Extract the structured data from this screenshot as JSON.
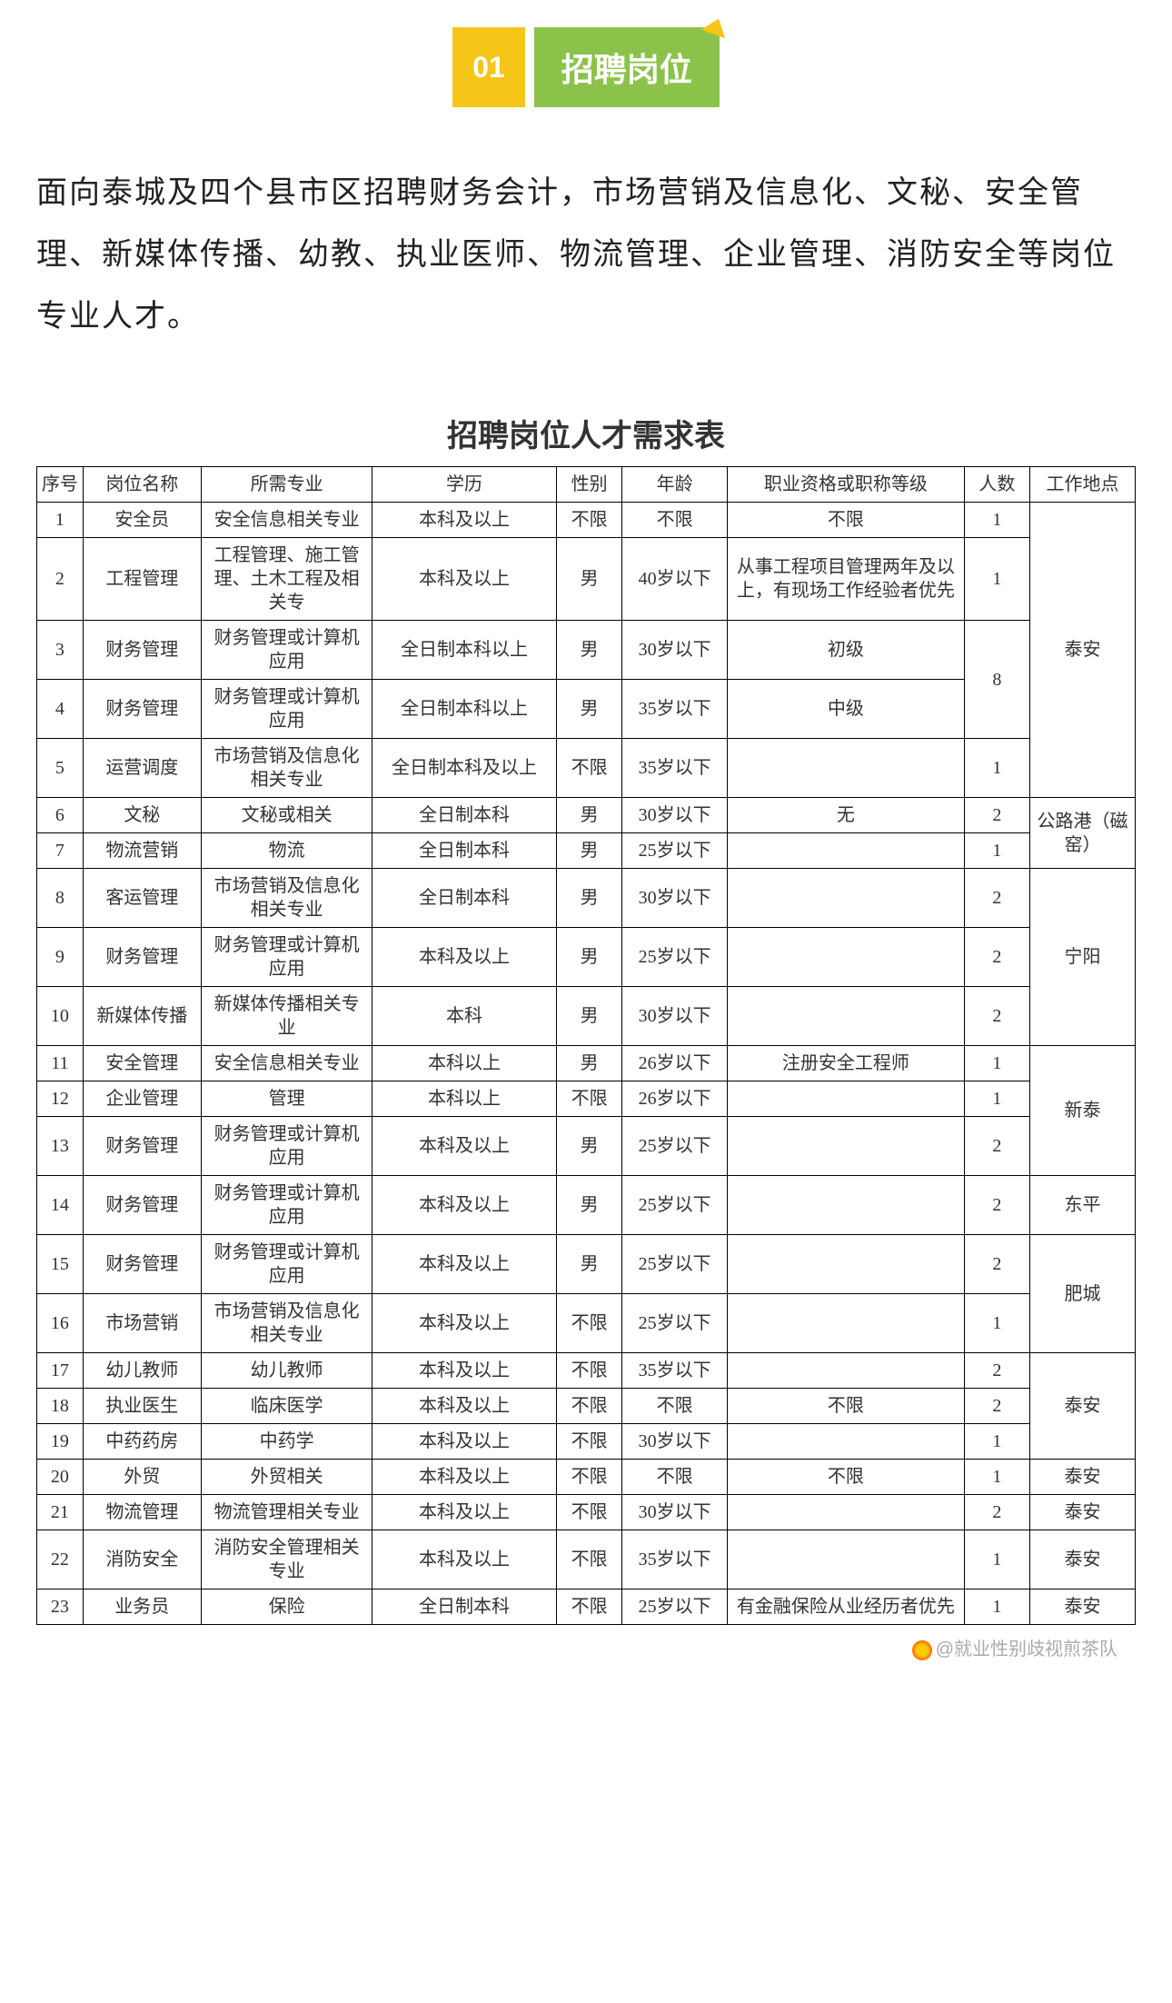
{
  "header": {
    "number": "01",
    "title": "招聘岗位"
  },
  "intro": "面向泰城及四个县市区招聘财务会计，市场营销及信息化、文秘、安全管理、新媒体传播、幼教、执业医师、物流管理、企业管理、消防安全等岗位专业人才。",
  "table": {
    "title": "招聘岗位人才需求表",
    "columns": [
      "序号",
      "岗位名称",
      "所需专业",
      "学历",
      "性别",
      "年龄",
      "职业资格或职称等级",
      "人数",
      "工作地点"
    ],
    "rows": [
      {
        "seq": "1",
        "name": "安全员",
        "major": "安全信息相关专业",
        "edu": "本科及以上",
        "gender": "不限",
        "age": "不限",
        "qual": "不限",
        "count": "1",
        "loc": null
      },
      {
        "seq": "2",
        "name": "工程管理",
        "major": "工程管理、施工管理、土木工程及相关专",
        "edu": "本科及以上",
        "gender": "男",
        "age": "40岁以下",
        "qual": "从事工程项目管理两年及以上，有现场工作经验者优先",
        "count": "1",
        "loc": null
      },
      {
        "seq": "3",
        "name": "财务管理",
        "major": "财务管理或计算机应用",
        "edu": "全日制本科以上",
        "gender": "男",
        "age": "30岁以下",
        "qual": "初级",
        "count": null,
        "loc": null
      },
      {
        "seq": "4",
        "name": "财务管理",
        "major": "财务管理或计算机应用",
        "edu": "全日制本科以上",
        "gender": "男",
        "age": "35岁以下",
        "qual": "中级",
        "count": null,
        "loc": null
      },
      {
        "seq": "5",
        "name": "运营调度",
        "major": "市场营销及信息化相关专业",
        "edu": "全日制本科及以上",
        "gender": "不限",
        "age": "35岁以下",
        "qual": "",
        "count": "1",
        "loc": null
      },
      {
        "seq": "6",
        "name": "文秘",
        "major": "文秘或相关",
        "edu": "全日制本科",
        "gender": "男",
        "age": "30岁以下",
        "qual": "无",
        "count": "2",
        "loc": null
      },
      {
        "seq": "7",
        "name": "物流营销",
        "major": "物流",
        "edu": "全日制本科",
        "gender": "男",
        "age": "25岁以下",
        "qual": "",
        "count": "1",
        "loc": null
      },
      {
        "seq": "8",
        "name": "客运管理",
        "major": "市场营销及信息化相关专业",
        "edu": "全日制本科",
        "gender": "男",
        "age": "30岁以下",
        "qual": "",
        "count": "2",
        "loc": null
      },
      {
        "seq": "9",
        "name": "财务管理",
        "major": "财务管理或计算机应用",
        "edu": "本科及以上",
        "gender": "男",
        "age": "25岁以下",
        "qual": "",
        "count": "2",
        "loc": null
      },
      {
        "seq": "10",
        "name": "新媒体传播",
        "major": "新媒体传播相关专业",
        "edu": "本科",
        "gender": "男",
        "age": "30岁以下",
        "qual": "",
        "count": "2",
        "loc": null
      },
      {
        "seq": "11",
        "name": "安全管理",
        "major": "安全信息相关专业",
        "edu": "本科以上",
        "gender": "男",
        "age": "26岁以下",
        "qual": "注册安全工程师",
        "count": "1",
        "loc": null
      },
      {
        "seq": "12",
        "name": "企业管理",
        "major": "管理",
        "edu": "本科以上",
        "gender": "不限",
        "age": "26岁以下",
        "qual": "",
        "count": "1",
        "loc": null
      },
      {
        "seq": "13",
        "name": "财务管理",
        "major": "财务管理或计算机应用",
        "edu": "本科及以上",
        "gender": "男",
        "age": "25岁以下",
        "qual": "",
        "count": "2",
        "loc": null
      },
      {
        "seq": "14",
        "name": "财务管理",
        "major": "财务管理或计算机应用",
        "edu": "本科及以上",
        "gender": "男",
        "age": "25岁以下",
        "qual": "",
        "count": "2",
        "loc": "东平"
      },
      {
        "seq": "15",
        "name": "财务管理",
        "major": "财务管理或计算机应用",
        "edu": "本科及以上",
        "gender": "男",
        "age": "25岁以下",
        "qual": "",
        "count": "2",
        "loc": null
      },
      {
        "seq": "16",
        "name": "市场营销",
        "major": "市场营销及信息化相关专业",
        "edu": "本科及以上",
        "gender": "不限",
        "age": "25岁以下",
        "qual": "",
        "count": "1",
        "loc": null
      },
      {
        "seq": "17",
        "name": "幼儿教师",
        "major": "幼儿教师",
        "edu": "本科及以上",
        "gender": "不限",
        "age": "35岁以下",
        "qual": "",
        "count": "2",
        "loc": null
      },
      {
        "seq": "18",
        "name": "执业医生",
        "major": "临床医学",
        "edu": "本科及以上",
        "gender": "不限",
        "age": "不限",
        "qual": "不限",
        "count": "2",
        "loc": null
      },
      {
        "seq": "19",
        "name": "中药药房",
        "major": "中药学",
        "edu": "本科及以上",
        "gender": "不限",
        "age": "30岁以下",
        "qual": "",
        "count": "1",
        "loc": null
      },
      {
        "seq": "20",
        "name": "外贸",
        "major": "外贸相关",
        "edu": "本科及以上",
        "gender": "不限",
        "age": "不限",
        "qual": "不限",
        "count": "1",
        "loc": "泰安"
      },
      {
        "seq": "21",
        "name": "物流管理",
        "major": "物流管理相关专业",
        "edu": "本科及以上",
        "gender": "不限",
        "age": "30岁以下",
        "qual": "",
        "count": "2",
        "loc": "泰安"
      },
      {
        "seq": "22",
        "name": "消防安全",
        "major": "消防安全管理相关专业",
        "edu": "本科及以上",
        "gender": "不限",
        "age": "35岁以下",
        "qual": "",
        "count": "1",
        "loc": "泰安"
      },
      {
        "seq": "23",
        "name": "业务员",
        "major": "保险",
        "edu": "全日制本科",
        "gender": "不限",
        "age": "25岁以下",
        "qual": "有金融保险从业经历者优先",
        "count": "1",
        "loc": "泰安"
      }
    ],
    "merged_count_34": "8",
    "loc_taian": "泰安",
    "loc_gonglugang": "公路港（磁窑）",
    "loc_ningyang": "宁阳",
    "loc_xintai": "新泰",
    "loc_feicheng": "肥城"
  },
  "watermark": "@就业性别歧视煎茶队"
}
